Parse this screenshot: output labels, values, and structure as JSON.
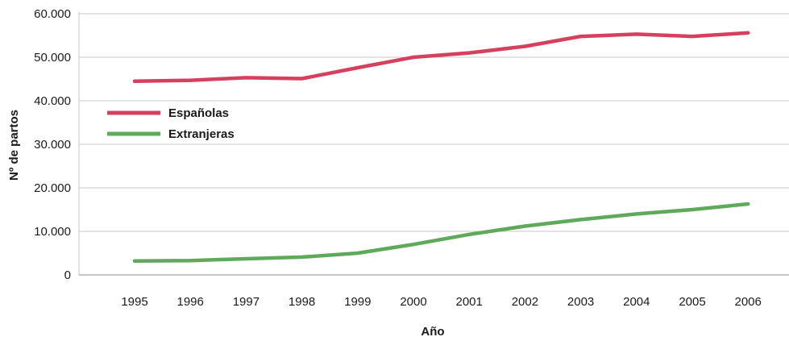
{
  "chart_data": {
    "type": "line",
    "xlabel": "Año",
    "ylabel": "Nº de partos",
    "categories": [
      "1995",
      "1996",
      "1997",
      "1998",
      "1999",
      "2000",
      "2001",
      "2002",
      "2003",
      "2004",
      "2005",
      "2006"
    ],
    "ylim": [
      0,
      60000
    ],
    "yticks": [
      0,
      10000,
      20000,
      30000,
      40000,
      50000,
      60000
    ],
    "ytick_labels": [
      "0",
      "10.000",
      "20.000",
      "30.000",
      "40.000",
      "50.000",
      "60.000"
    ],
    "grid": true,
    "legend_position": "center-left",
    "series": [
      {
        "name": "Españolas",
        "color": "#d6405f",
        "values": [
          44500,
          44700,
          45300,
          45100,
          47600,
          50000,
          51000,
          52500,
          54800,
          55300,
          54800,
          55600
        ]
      },
      {
        "name": "Extranjeras",
        "color": "#5eaa5a",
        "values": [
          3200,
          3300,
          3700,
          4100,
          5000,
          7000,
          9300,
          11200,
          12700,
          14000,
          15000,
          16300
        ]
      }
    ]
  }
}
